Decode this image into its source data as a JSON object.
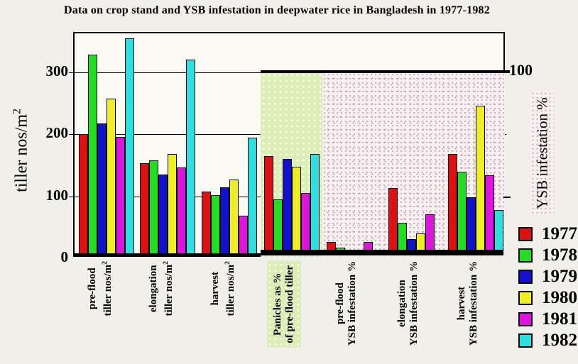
{
  "page": {
    "background": "#f1efe9"
  },
  "chart_data": {
    "type": "bar",
    "title": "Data on crop stand and YSB infestation in deepwater rice in Bangladesh in 1977-1982",
    "left_axis": {
      "label_base": "tiller nos/m",
      "label_sup": "2",
      "ticks": [
        "0",
        "100",
        "200",
        "300"
      ],
      "range": [
        0,
        362
      ]
    },
    "right_axis": {
      "label": "YSB infestation %",
      "tick_label": "100",
      "note": "right axis 100% aligns with left axis value 300"
    },
    "categories": [
      {
        "id": "pre-flood-tiller",
        "line1": "pre-flood",
        "line2": "tiller nos/m",
        "line2_sup": "2",
        "highlighted": false
      },
      {
        "id": "elongation-tiller",
        "line1": "elongation",
        "line2": "tiller nos/m",
        "line2_sup": "2",
        "highlighted": false
      },
      {
        "id": "harvest-tiller",
        "line1": "harvest",
        "line2": "tiller nos/m",
        "line2_sup": "2",
        "highlighted": false
      },
      {
        "id": "panicles-pct",
        "line1": "Panicles as %",
        "line2": "of pre-flood tiller",
        "line2_sup": "",
        "highlighted": true
      },
      {
        "id": "pre-flood-ysb",
        "line1": "pre-flood",
        "line2": "YSB infestation %",
        "line2_sup": "",
        "highlighted": false
      },
      {
        "id": "elongation-ysb",
        "line1": "elongation",
        "line2": "YSB infestation %",
        "line2_sup": "",
        "highlighted": false
      },
      {
        "id": "harvest-ysb",
        "line1": "harvest",
        "line2": "YSB infestation %",
        "line2_sup": "",
        "highlighted": false
      }
    ],
    "series": [
      {
        "name": "1977",
        "color": "#dd1111",
        "values_left_axis_units": [
          195,
          148,
          103,
          160,
          22,
          108,
          163
        ],
        "percent_on_right_axis": {
          "panicles": 53,
          "pre_flood_ysb": 7,
          "elongation_ysb": 36,
          "harvest_ysb": 54
        }
      },
      {
        "name": "1978",
        "color": "#22dd22",
        "values_left_axis_units": [
          323,
          153,
          97,
          90,
          12,
          53,
          135
        ],
        "percent_on_right_axis": {
          "panicles": 30,
          "pre_flood_ysb": 4,
          "elongation_ysb": 18,
          "harvest_ysb": 45
        }
      },
      {
        "name": "1979",
        "color": "#1212cc",
        "values_left_axis_units": [
          212,
          130,
          110,
          155,
          3,
          26,
          94
        ],
        "percent_on_right_axis": {
          "panicles": 52,
          "pre_flood_ysb": 1,
          "elongation_ysb": 9,
          "harvest_ysb": 31
        }
      },
      {
        "name": "1980",
        "color": "#eeee22",
        "values_left_axis_units": [
          253,
          163,
          122,
          143,
          8,
          35,
          241
        ],
        "percent_on_right_axis": {
          "panicles": 48,
          "pre_flood_ysb": 3,
          "elongation_ysb": 12,
          "harvest_ysb": 80
        }
      },
      {
        "name": "1981",
        "color": "#dd14dd",
        "values_left_axis_units": [
          191,
          142,
          64,
          100,
          22,
          66,
          129
        ],
        "percent_on_right_axis": {
          "panicles": 33,
          "pre_flood_ysb": 7,
          "elongation_ysb": 22,
          "harvest_ysb": 43
        }
      },
      {
        "name": "1982",
        "color": "#2fdede",
        "values_left_axis_units": [
          350,
          315,
          190,
          163,
          5,
          8,
          73
        ],
        "percent_on_right_axis": {
          "panicles": 54,
          "pre_flood_ysb": 2,
          "elongation_ysb": 3,
          "harvest_ysb": 24
        }
      }
    ],
    "regions": [
      {
        "id": "panicles-highlight",
        "color": "#dcedb5",
        "spans_categories": [
          "panicles-pct"
        ]
      },
      {
        "id": "ysb-highlight",
        "color": "#f7f0ee",
        "spans_categories": [
          "pre-flood-ysb",
          "elongation-ysb",
          "harvest-ysb"
        ]
      }
    ],
    "grid": "horizontal lines at 100, 200, 300",
    "legend_position": "right"
  }
}
